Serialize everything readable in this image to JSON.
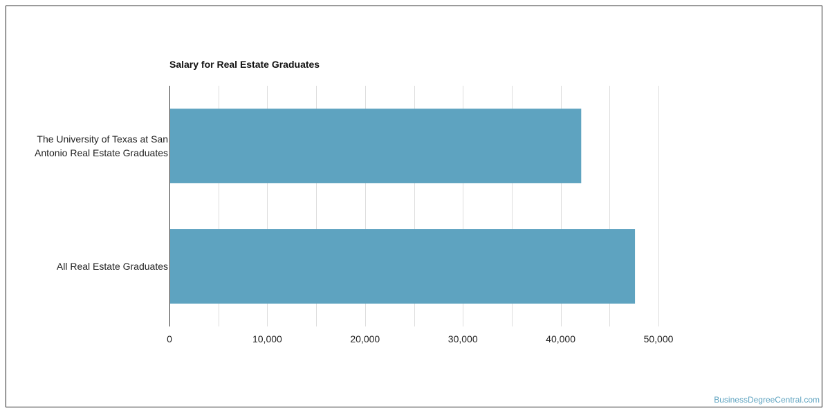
{
  "chart_data": {
    "type": "bar",
    "orientation": "horizontal",
    "title": "Salary for Real Estate Graduates",
    "categories": [
      "The University of Texas at San Antonio Real Estate Graduates",
      "All Real Estate Graduates"
    ],
    "category_label_lines": [
      [
        "The University of Texas at San",
        "Antonio Real Estate Graduates"
      ],
      [
        "All Real Estate Graduates"
      ]
    ],
    "values": [
      42100,
      47600
    ],
    "xlim": [
      0,
      50000
    ],
    "xticks": [
      0,
      10000,
      20000,
      30000,
      40000,
      50000
    ],
    "xtick_labels": [
      "0",
      "10,000",
      "20,000",
      "30,000",
      "40,000",
      "50,000"
    ],
    "grid": true,
    "bar_color": "#5ea3c0"
  },
  "watermark": "BusinessDegreeCentral.com",
  "colors": {
    "watermark": "#5ea3c0",
    "grid": "#dddddd",
    "axis": "#333333",
    "text": "#222222"
  }
}
